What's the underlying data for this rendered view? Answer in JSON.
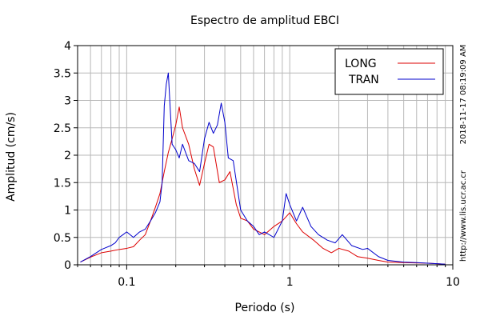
{
  "chart_data": {
    "type": "line",
    "title": "Espectro de amplitud EBCI",
    "xlabel": "Periodo (s)",
    "ylabel": "Amplitud (cm/s)",
    "x_scale": "log",
    "xlim": [
      0.05,
      10
    ],
    "ylim": [
      0,
      4
    ],
    "x_ticks": [
      {
        "value": 0.1,
        "label": "0.1"
      },
      {
        "value": 1,
        "label": "1"
      },
      {
        "value": 10,
        "label": "10"
      }
    ],
    "y_ticks": [
      {
        "value": 0,
        "label": "0"
      },
      {
        "value": 0.5,
        "label": "0.5"
      },
      {
        "value": 1,
        "label": "1"
      },
      {
        "value": 1.5,
        "label": "1.5"
      },
      {
        "value": 2,
        "label": "2"
      },
      {
        "value": 2.5,
        "label": "2.5"
      },
      {
        "value": 3,
        "label": "3"
      },
      {
        "value": 3.5,
        "label": "3.5"
      },
      {
        "value": 4,
        "label": "4"
      }
    ],
    "grid": true,
    "legend_position": "top-right",
    "side_text": "2018-11-17 08:19:09 AM",
    "side_text_2": "http://www.lis.ucr.ac.cr",
    "series": [
      {
        "name": "LONG",
        "color": "#dd0000",
        "points": [
          [
            0.052,
            0.05
          ],
          [
            0.06,
            0.14
          ],
          [
            0.07,
            0.22
          ],
          [
            0.08,
            0.25
          ],
          [
            0.09,
            0.28
          ],
          [
            0.1,
            0.3
          ],
          [
            0.11,
            0.33
          ],
          [
            0.12,
            0.45
          ],
          [
            0.13,
            0.55
          ],
          [
            0.14,
            0.8
          ],
          [
            0.15,
            1.05
          ],
          [
            0.16,
            1.3
          ],
          [
            0.17,
            1.7
          ],
          [
            0.18,
            2.05
          ],
          [
            0.19,
            2.3
          ],
          [
            0.2,
            2.55
          ],
          [
            0.21,
            2.88
          ],
          [
            0.22,
            2.5
          ],
          [
            0.24,
            2.2
          ],
          [
            0.26,
            1.75
          ],
          [
            0.28,
            1.45
          ],
          [
            0.3,
            1.85
          ],
          [
            0.32,
            2.2
          ],
          [
            0.34,
            2.15
          ],
          [
            0.37,
            1.5
          ],
          [
            0.4,
            1.55
          ],
          [
            0.43,
            1.7
          ],
          [
            0.47,
            1.1
          ],
          [
            0.5,
            0.85
          ],
          [
            0.55,
            0.8
          ],
          [
            0.6,
            0.65
          ],
          [
            0.65,
            0.6
          ],
          [
            0.7,
            0.55
          ],
          [
            0.8,
            0.7
          ],
          [
            0.9,
            0.8
          ],
          [
            1.0,
            0.95
          ],
          [
            1.1,
            0.75
          ],
          [
            1.2,
            0.6
          ],
          [
            1.4,
            0.45
          ],
          [
            1.6,
            0.3
          ],
          [
            1.8,
            0.22
          ],
          [
            2.0,
            0.3
          ],
          [
            2.3,
            0.25
          ],
          [
            2.6,
            0.15
          ],
          [
            3.0,
            0.12
          ],
          [
            3.5,
            0.08
          ],
          [
            4.0,
            0.05
          ],
          [
            5.0,
            0.04
          ],
          [
            7.0,
            0.03
          ],
          [
            9.0,
            0.01
          ]
        ]
      },
      {
        "name": "TRAN",
        "color": "#0000cc",
        "points": [
          [
            0.052,
            0.05
          ],
          [
            0.06,
            0.15
          ],
          [
            0.07,
            0.28
          ],
          [
            0.08,
            0.35
          ],
          [
            0.085,
            0.4
          ],
          [
            0.09,
            0.5
          ],
          [
            0.095,
            0.55
          ],
          [
            0.1,
            0.6
          ],
          [
            0.11,
            0.5
          ],
          [
            0.12,
            0.6
          ],
          [
            0.13,
            0.65
          ],
          [
            0.14,
            0.8
          ],
          [
            0.15,
            0.95
          ],
          [
            0.16,
            1.15
          ],
          [
            0.165,
            1.5
          ],
          [
            0.17,
            2.9
          ],
          [
            0.175,
            3.3
          ],
          [
            0.18,
            3.5
          ],
          [
            0.19,
            2.2
          ],
          [
            0.2,
            2.1
          ],
          [
            0.21,
            1.95
          ],
          [
            0.22,
            2.2
          ],
          [
            0.24,
            1.9
          ],
          [
            0.26,
            1.85
          ],
          [
            0.28,
            1.7
          ],
          [
            0.3,
            2.3
          ],
          [
            0.32,
            2.6
          ],
          [
            0.34,
            2.4
          ],
          [
            0.36,
            2.55
          ],
          [
            0.38,
            2.95
          ],
          [
            0.4,
            2.6
          ],
          [
            0.42,
            1.95
          ],
          [
            0.45,
            1.9
          ],
          [
            0.5,
            1.0
          ],
          [
            0.55,
            0.8
          ],
          [
            0.6,
            0.7
          ],
          [
            0.65,
            0.55
          ],
          [
            0.7,
            0.6
          ],
          [
            0.8,
            0.5
          ],
          [
            0.9,
            0.8
          ],
          [
            0.95,
            1.3
          ],
          [
            1.0,
            1.1
          ],
          [
            1.1,
            0.8
          ],
          [
            1.2,
            1.05
          ],
          [
            1.35,
            0.7
          ],
          [
            1.5,
            0.55
          ],
          [
            1.7,
            0.45
          ],
          [
            1.9,
            0.4
          ],
          [
            2.1,
            0.55
          ],
          [
            2.4,
            0.35
          ],
          [
            2.8,
            0.28
          ],
          [
            3.0,
            0.3
          ],
          [
            3.5,
            0.15
          ],
          [
            4.0,
            0.08
          ],
          [
            5.0,
            0.05
          ],
          [
            6.0,
            0.04
          ],
          [
            8.0,
            0.02
          ],
          [
            9.0,
            0.01
          ]
        ]
      }
    ]
  }
}
